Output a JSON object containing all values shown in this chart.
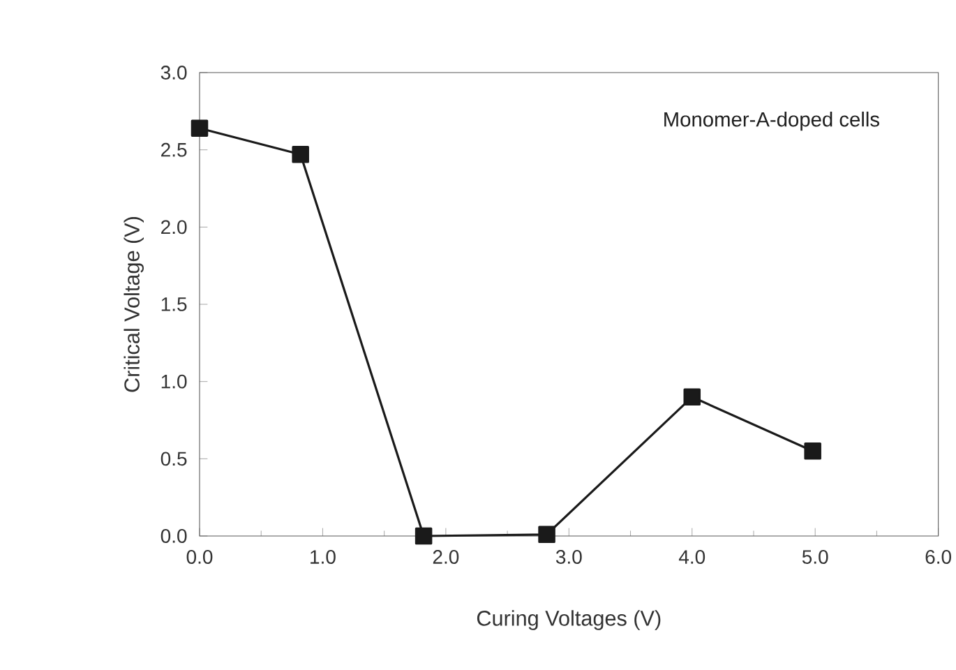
{
  "chart_data": {
    "type": "line",
    "xlabel": "Curing Voltages (V)",
    "ylabel": "Critical  Voltage (V)",
    "annotations": [
      "Monomer-A-doped cells"
    ],
    "x": [
      0.0,
      0.82,
      1.82,
      2.82,
      4.0,
      4.98
    ],
    "series": [
      {
        "color": "#1a1a1a",
        "values": [
          2.64,
          2.47,
          0.0,
          0.01,
          0.9,
          0.55
        ]
      }
    ],
    "marker": "square",
    "line_style": "solid",
    "grid": false,
    "xlim": [
      0,
      6
    ],
    "ylim": [
      0,
      3
    ],
    "xticks": [
      {
        "value": 0,
        "label": "0.0"
      },
      {
        "value": 1,
        "label": "1.0"
      },
      {
        "value": 2,
        "label": "2.0"
      },
      {
        "value": 3,
        "label": "3.0"
      },
      {
        "value": 4,
        "label": "4.0"
      },
      {
        "value": 5,
        "label": "5.0"
      },
      {
        "value": 6,
        "label": "6.0"
      }
    ],
    "yticks": [
      {
        "value": 0,
        "label": "0.0"
      },
      {
        "value": 0.5,
        "label": "0.5"
      },
      {
        "value": 1,
        "label": "1.0"
      },
      {
        "value": 1.5,
        "label": "1.5"
      },
      {
        "value": 2,
        "label": "2.0"
      },
      {
        "value": 2.5,
        "label": "2.5"
      },
      {
        "value": 3,
        "label": "3.0"
      }
    ]
  }
}
